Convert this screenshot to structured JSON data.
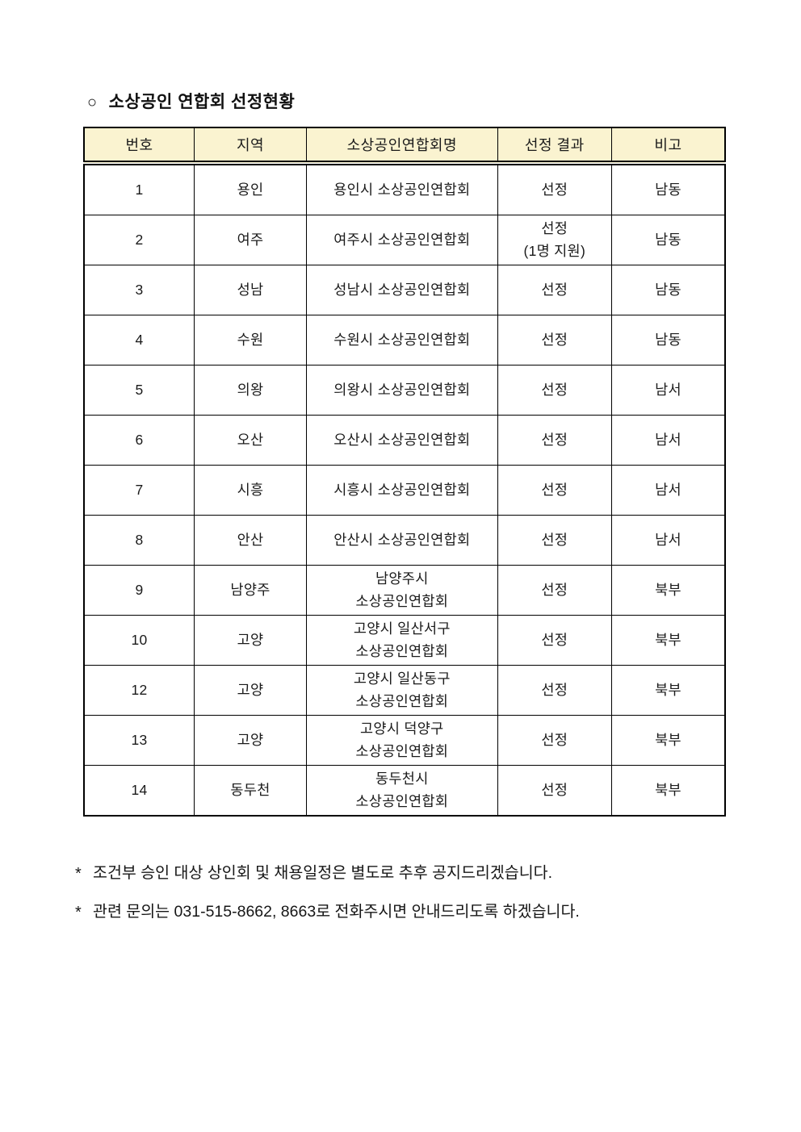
{
  "page": {
    "title_bullet": "○",
    "title": "소상공인 연합회 선정현황"
  },
  "colors": {
    "header_bg": "#FAF3D0",
    "border": "#000000",
    "text": "#1A1A1A"
  },
  "table": {
    "headers": [
      "번호",
      "지역",
      "소상공인연합회명",
      "선정 결과",
      "비고"
    ],
    "rows": [
      {
        "no": "1",
        "region": "용인",
        "name": "용인시 소상공인연합회",
        "result": "선정",
        "note": "남동"
      },
      {
        "no": "2",
        "region": "여주",
        "name": "여주시 소상공인연합회",
        "result": "선정\n(1명 지원)",
        "note": "남동"
      },
      {
        "no": "3",
        "region": "성남",
        "name": "성남시 소상공인연합회",
        "result": "선정",
        "note": "남동"
      },
      {
        "no": "4",
        "region": "수원",
        "name": "수원시 소상공인연합회",
        "result": "선정",
        "note": "남동"
      },
      {
        "no": "5",
        "region": "의왕",
        "name": "의왕시 소상공인연합회",
        "result": "선정",
        "note": "남서"
      },
      {
        "no": "6",
        "region": "오산",
        "name": "오산시 소상공인연합회",
        "result": "선정",
        "note": "남서"
      },
      {
        "no": "7",
        "region": "시흥",
        "name": "시흥시 소상공인연합회",
        "result": "선정",
        "note": "남서"
      },
      {
        "no": "8",
        "region": "안산",
        "name": "안산시 소상공인연합회",
        "result": "선정",
        "note": "남서"
      },
      {
        "no": "9",
        "region": "남양주",
        "name": "남양주시\n소상공인연합회",
        "result": "선정",
        "note": "북부"
      },
      {
        "no": "10",
        "region": "고양",
        "name": "고양시 일산서구\n소상공인연합회",
        "result": "선정",
        "note": "북부"
      },
      {
        "no": "12",
        "region": "고양",
        "name": "고양시 일산동구\n소상공인연합회",
        "result": "선정",
        "note": "북부"
      },
      {
        "no": "13",
        "region": "고양",
        "name": "고양시 덕양구\n소상공인연합회",
        "result": "선정",
        "note": "북부"
      },
      {
        "no": "14",
        "region": "동두천",
        "name": "동두천시\n소상공인연합회",
        "result": "선정",
        "note": "북부"
      }
    ]
  },
  "footnotes": [
    {
      "marker": "*",
      "text": "조건부 승인 대상 상인회 및 채용일정은 별도로 추후 공지드리겠습니다."
    },
    {
      "marker": "*",
      "text": "관련 문의는 031-515-8662, 8663로 전화주시면 안내드리도록 하겠습니다."
    }
  ]
}
